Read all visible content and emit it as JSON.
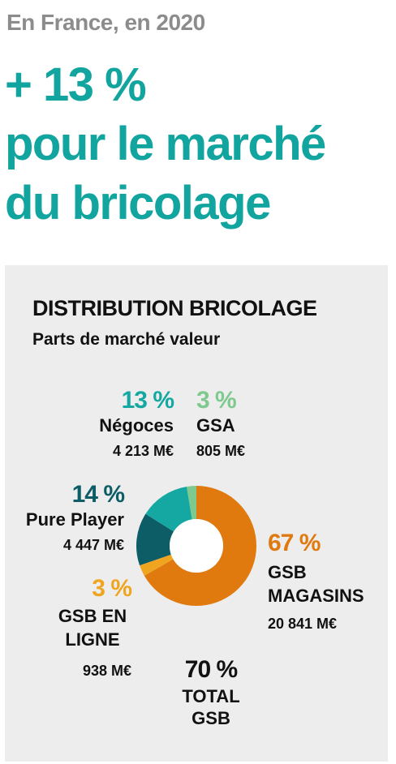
{
  "header": {
    "kicker": "En France, en 2020",
    "headline_line1": "+ 13 %",
    "headline_line2": "pour le marché",
    "headline_line3": "du bricolage"
  },
  "chart_data": {
    "type": "pie",
    "title": "DISTRIBUTION BRICOLAGE",
    "subtitle": "Parts de marché valeur",
    "series": [
      {
        "name": "GSB MAGASINS",
        "percent_label": "67 %",
        "amount_label": "20 841 M€",
        "value": 20841,
        "color": "#e07a0f"
      },
      {
        "name": "GSB EN LIGNE",
        "percent_label": "3 %",
        "amount_label": "938 M€",
        "value": 938,
        "color": "#f0a520"
      },
      {
        "name": "Pure Player",
        "percent_label": "14 %",
        "amount_label": "4 447 M€",
        "value": 4447,
        "color": "#0d5d67"
      },
      {
        "name": "Négoces",
        "percent_label": "13 %",
        "amount_label": "4 213 M€",
        "value": 4213,
        "color": "#15a8a3"
      },
      {
        "name": "GSA",
        "percent_label": "3 %",
        "amount_label": "805 M€",
        "value": 805,
        "color": "#7dc98e"
      }
    ],
    "total": {
      "percent_label": "70 %",
      "label_line1": "TOTAL",
      "label_line2": "GSB"
    }
  }
}
